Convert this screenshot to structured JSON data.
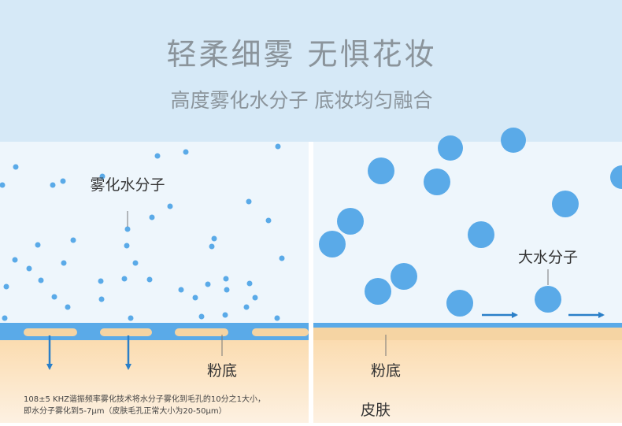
{
  "header": {
    "title": "轻柔细雾 无惧花妆",
    "subtitle": "高度雾化水分子 底妆均匀融合"
  },
  "left_panel": {
    "molecule_label": "雾化水分子",
    "foundation_label": "粉底",
    "note_lines": [
      "108±5 KHZ谐振频率雾化技术将水分子雾化到毛孔的10分之1大小，",
      "即水分子雾化到5-7μm（皮肤毛孔正常大小为20-50μm）"
    ]
  },
  "right_panel": {
    "molecule_label": "大水分子",
    "foundation_label": "粉底",
    "skin_label": "皮肤"
  }
}
